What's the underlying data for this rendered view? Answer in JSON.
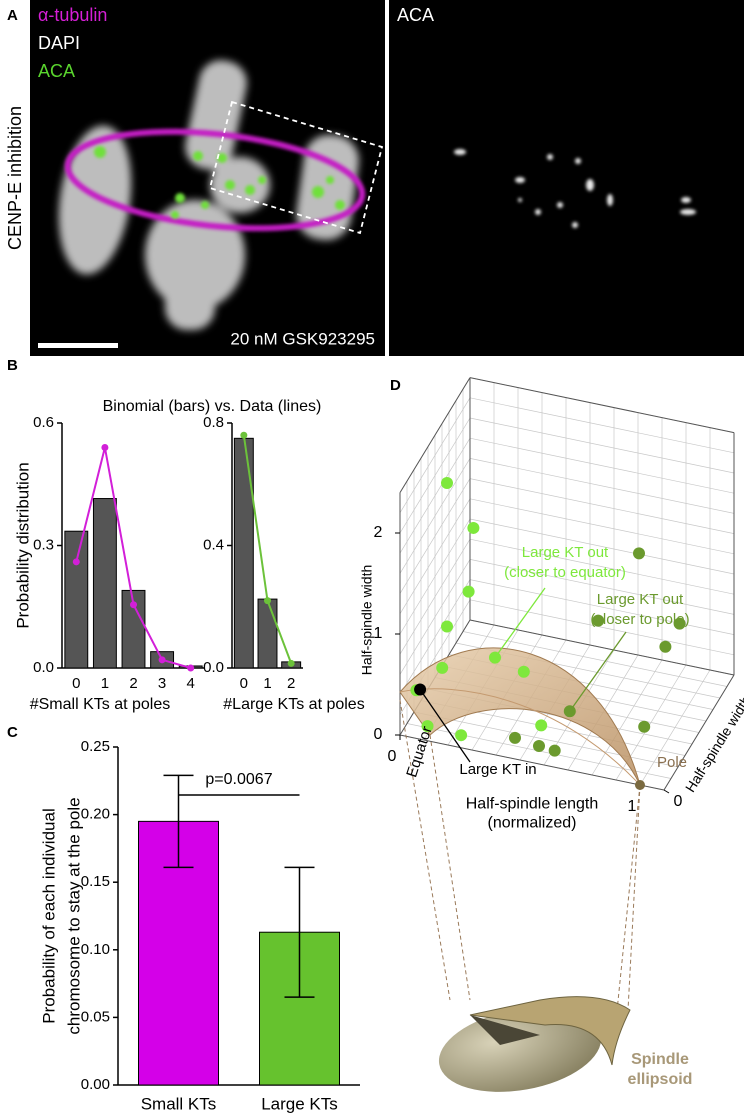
{
  "panel_labels": [
    "A",
    "B",
    "C",
    "D"
  ],
  "panel_a": {
    "row_label": "CENP-E inhibition",
    "channels": [
      {
        "name": "α-tubulin",
        "color": "#d61fd6"
      },
      {
        "name": "DAPI",
        "color": "#ffffff"
      },
      {
        "name": "ACA",
        "color": "#5ad52e"
      }
    ],
    "treatment": "20 nM GSK923295",
    "right_title": "ACA"
  },
  "panel_b_title": "Binomial (bars) vs. Data (lines)",
  "chart_data": [
    {
      "type": "bar_line",
      "ylabel": "Probability distribution",
      "xlabel": "#Small KTs at poles",
      "categories": [
        "0",
        "1",
        "2",
        "3",
        "4"
      ],
      "bars": {
        "color": "#555555",
        "values": [
          0.335,
          0.415,
          0.19,
          0.04,
          0.005
        ]
      },
      "line": {
        "color": "#d21fd8",
        "values": [
          0.26,
          0.54,
          0.155,
          0.02,
          0.0
        ]
      },
      "ylim": [
        0,
        0.6
      ],
      "yticks": [
        {
          "value": 0,
          "label": "0.0"
        },
        0.3,
        0.6
      ]
    },
    {
      "type": "bar_line",
      "xlabel": "#Large KTs at poles",
      "categories": [
        "0",
        "1",
        "2"
      ],
      "bars": {
        "color": "#555555",
        "values": [
          0.75,
          0.225,
          0.02
        ]
      },
      "line": {
        "color": "#6cc23a",
        "values": [
          0.76,
          0.22,
          0.015
        ]
      },
      "ylim": [
        0,
        0.8
      ],
      "yticks": [
        {
          "value": 0,
          "label": "0.0"
        },
        0.4,
        0.8
      ]
    },
    {
      "type": "bar_error",
      "ylabel": [
        "Probability of each individual",
        "chromosome to stay at the pole"
      ],
      "categories": [
        "Small KTs",
        "Large KTs"
      ],
      "values": [
        0.195,
        0.113
      ],
      "errors": [
        0.034,
        0.048
      ],
      "colors": [
        "#d400e8",
        "#66c22e"
      ],
      "ylim": [
        0,
        0.25
      ],
      "yticks": [
        {
          "value": 0,
          "label": "0.00"
        },
        {
          "value": 0.05,
          "label": "0.05"
        },
        {
          "value": 0.1,
          "label": "0.10"
        },
        {
          "value": 0.15,
          "label": "0.15"
        },
        {
          "value": 0.2,
          "label": "0.20"
        },
        {
          "value": 0.25,
          "label": "0.25"
        }
      ],
      "annotation": "p=0.0067"
    },
    {
      "type": "scatter3d",
      "zlabel": "Half-spindle width",
      "xlabel": [
        "Half-spindle length",
        "(normalized)"
      ],
      "wlabel": "Half-spindle width",
      "xlim": [
        0,
        1.1
      ],
      "wlim": [
        0,
        1
      ],
      "zlim": [
        0,
        2.4
      ],
      "xticks": [
        0,
        1
      ],
      "wticks": [
        0
      ],
      "zticks": [
        0,
        1,
        2
      ],
      "grid": true,
      "series": [
        {
          "name": [
            "Large KT out",
            "(closer to equator)"
          ],
          "color": "#7ee83c",
          "points": [
            [
              0.05,
              0.5,
              1.95
            ],
            [
              0.16,
              0.5,
              1.56
            ],
            [
              0.14,
              0.5,
              0.92
            ],
            [
              0.05,
              0.5,
              0.53
            ],
            [
              0.01,
              0.2,
              0.22
            ],
            [
              0.03,
              0.5,
              0.11
            ],
            [
              0.25,
              0.5,
              0.32
            ],
            [
              0.37,
              0.5,
              0.24
            ],
            [
              0.1,
              0.05,
              0.08
            ],
            [
              0.24,
              0.05,
              0.06
            ],
            [
              0.53,
              0.2,
              0.13
            ]
          ]
        },
        {
          "name": [
            "Large KT out",
            "(closer to pole)"
          ],
          "color": "#6b9a2e",
          "points": [
            [
              0.45,
              0.1,
              0.08
            ],
            [
              0.62,
              0.3,
              0.2
            ],
            [
              0.55,
              0.1,
              0.05
            ],
            [
              0.68,
              0.5,
              0.9
            ],
            [
              0.85,
              0.5,
              1.65
            ],
            [
              0.96,
              0.5,
              0.78
            ],
            [
              0.99,
              0.6,
              0.91
            ],
            [
              0.93,
              0.3,
              0.2
            ],
            [
              0.63,
              0.05,
              0.1
            ]
          ]
        },
        {
          "name": "Large KT in",
          "color": "#000000",
          "points": [
            [
              0.04,
              0.15,
              0.3
            ]
          ]
        }
      ],
      "pole": [
        1,
        0,
        0
      ],
      "annotations": {
        "equator": "Equator",
        "pole": "Pole",
        "ellipsoid": [
          "Spindle",
          "ellipsoid"
        ]
      }
    }
  ]
}
